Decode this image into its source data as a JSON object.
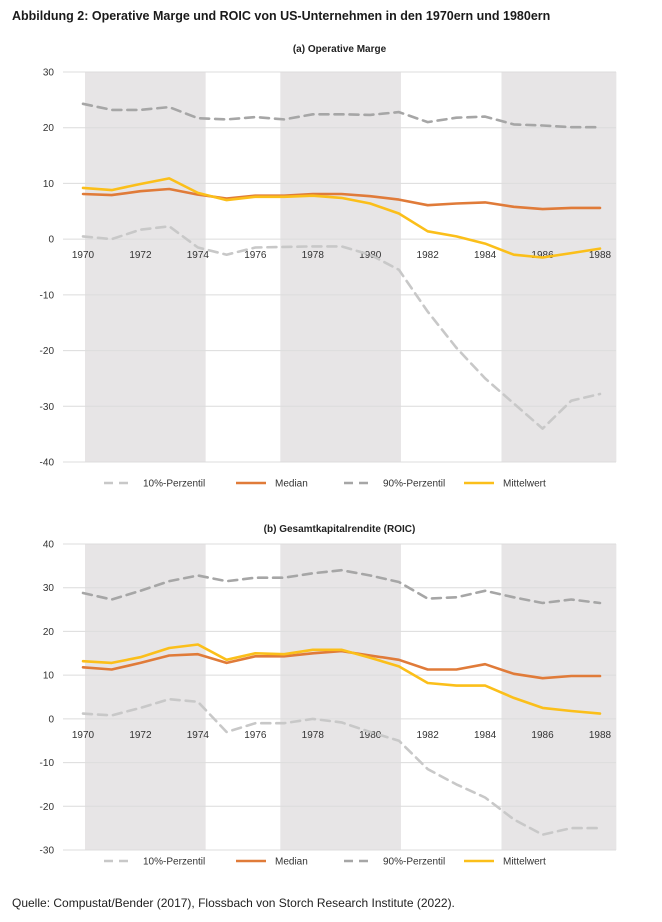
{
  "title": "Abbildung 2: Operative Marge und ROIC von US-Unternehmen in den 1970ern und 1980ern",
  "source": "Quelle: Compustat/Bender (2017), Flossbach von Storch Research Institute (2022).",
  "colors": {
    "p10": "#c8c8c8",
    "median": "#e07b39",
    "p90": "#a6a6a6",
    "mean": "#fbbf1a",
    "shade": "#e7e5e6",
    "grid": "#dcdcdc"
  },
  "chart_data": [
    {
      "type": "line",
      "title": "(a) Operative Marge",
      "x": [
        1970,
        1971,
        1972,
        1973,
        1974,
        1975,
        1976,
        1977,
        1978,
        1979,
        1980,
        1981,
        1982,
        1983,
        1984,
        1985,
        1986,
        1987,
        1988
      ],
      "x_tick_labels": [
        "1970",
        "1972",
        "1974",
        "1976",
        "1978",
        "1980",
        "1982",
        "1984",
        "1986",
        "1988"
      ],
      "y_tick_labels": [
        "30",
        "20",
        "10",
        "0",
        "-10",
        "-20",
        "-30",
        "-40"
      ],
      "ylim": [
        -40,
        30
      ],
      "shaded_periods": [
        [
          1970,
          1974.2
        ],
        [
          1976.8,
          1981
        ],
        [
          1984.5,
          1988.5
        ]
      ],
      "series": [
        {
          "name": "10%-Perzentil",
          "values": [
            0.5,
            0,
            1.7,
            2.3,
            -1.5,
            -2.8,
            -1.5,
            -1.4,
            -1.3,
            -1.3,
            -2.8,
            -5.5,
            -13,
            -19.5,
            -25,
            -29.5,
            -34,
            -29,
            -27.8
          ]
        },
        {
          "name": "Median",
          "values": [
            8.1,
            7.9,
            8.6,
            9,
            8,
            7.3,
            7.8,
            7.8,
            8.1,
            8.1,
            7.7,
            7.1,
            6.1,
            6.4,
            6.6,
            5.8,
            5.4,
            5.6,
            5.6
          ]
        },
        {
          "name": "90%-Perzentil",
          "values": [
            24.3,
            23.2,
            23.2,
            23.7,
            21.7,
            21.5,
            21.9,
            21.5,
            22.4,
            22.4,
            22.3,
            22.8,
            21,
            21.8,
            22,
            20.6,
            20.4,
            20.1,
            20.1
          ]
        },
        {
          "name": "Mittelwert",
          "values": [
            9.2,
            8.8,
            9.9,
            10.9,
            8.3,
            7,
            7.6,
            7.6,
            7.8,
            7.4,
            6.4,
            4.6,
            1.4,
            0.5,
            -0.8,
            -2.8,
            -3.3,
            -2.5,
            -1.7
          ]
        }
      ]
    },
    {
      "type": "line",
      "title": "(b) Gesamtkapitalrendite (ROIC)",
      "x": [
        1970,
        1971,
        1972,
        1973,
        1974,
        1975,
        1976,
        1977,
        1978,
        1979,
        1980,
        1981,
        1982,
        1983,
        1984,
        1985,
        1986,
        1987,
        1988
      ],
      "x_tick_labels": [
        "1970",
        "1972",
        "1974",
        "1976",
        "1978",
        "1980",
        "1982",
        "1984",
        "1986",
        "1988"
      ],
      "y_tick_labels": [
        "40",
        "30",
        "20",
        "10",
        "0",
        "-10",
        "-20",
        "-30"
      ],
      "ylim": [
        -30,
        40
      ],
      "shaded_periods": [
        [
          1970,
          1974.2
        ],
        [
          1976.8,
          1981
        ],
        [
          1984.5,
          1988.5
        ]
      ],
      "series": [
        {
          "name": "10%-Perzentil",
          "values": [
            1.2,
            0.8,
            2.5,
            4.5,
            3.9,
            -3,
            -1,
            -1,
            0,
            -0.8,
            -3,
            -5,
            -11.5,
            -15,
            -18,
            -23,
            -26.5,
            -25,
            -25
          ]
        },
        {
          "name": "Median",
          "values": [
            11.8,
            11.3,
            12.8,
            14.5,
            14.8,
            12.8,
            14.3,
            14.3,
            15,
            15.5,
            14.5,
            13.5,
            11.3,
            11.3,
            12.5,
            10.3,
            9.3,
            9.8,
            9.8
          ]
        },
        {
          "name": "90%-Perzentil",
          "values": [
            28.8,
            27.3,
            29.3,
            31.5,
            32.8,
            31.5,
            32.3,
            32.3,
            33.3,
            34,
            32.8,
            31.3,
            27.5,
            27.8,
            29.3,
            27.8,
            26.5,
            27.3,
            26.5
          ]
        },
        {
          "name": "Mittelwert",
          "values": [
            13.2,
            12.8,
            14.1,
            16.2,
            17,
            13.5,
            15,
            14.8,
            15.8,
            15.8,
            14,
            12,
            8.2,
            7.6,
            7.6,
            4.8,
            2.5,
            1.8,
            1.2
          ]
        }
      ]
    }
  ]
}
